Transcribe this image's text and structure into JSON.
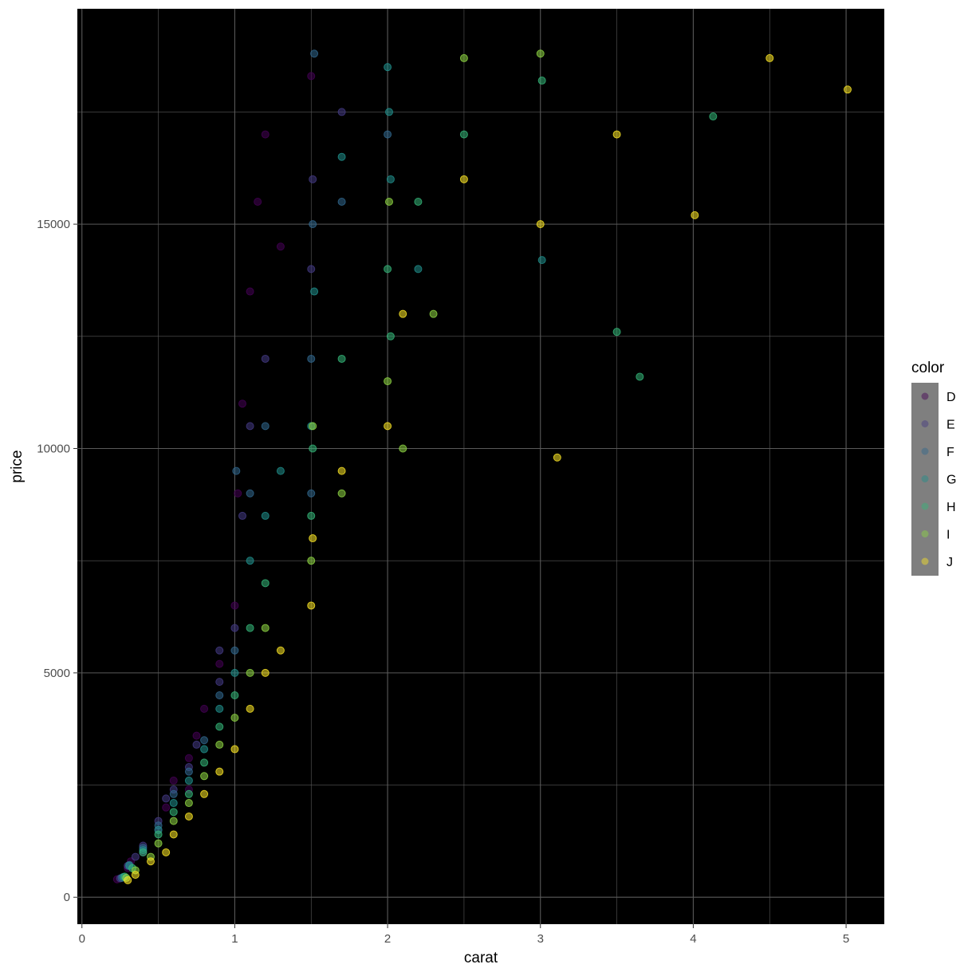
{
  "chart_data": {
    "type": "scatter",
    "title": "",
    "xlabel": "carat",
    "ylabel": "price",
    "xlim": [
      -0.03,
      5.25
    ],
    "ylim": [
      -600,
      19800
    ],
    "x_ticks": [
      0,
      1,
      2,
      3,
      4,
      5
    ],
    "x_tick_labels": [
      "0",
      "1",
      "2",
      "3",
      "4",
      "5"
    ],
    "y_ticks": [
      0,
      5000,
      10000,
      15000
    ],
    "y_tick_labels": [
      "0",
      "5000",
      "10000",
      "15000"
    ],
    "grid": true,
    "background": "#000000",
    "grid_color": "#5a5a5a",
    "legend": {
      "title": "color",
      "position": "right",
      "key_background": "#7f7f7f",
      "entries": [
        {
          "label": "D",
          "color": "#440154"
        },
        {
          "label": "E",
          "color": "#443a83"
        },
        {
          "label": "F",
          "color": "#31688e"
        },
        {
          "label": "G",
          "color": "#21908c"
        },
        {
          "label": "H",
          "color": "#35b779"
        },
        {
          "label": "I",
          "color": "#8fd744"
        },
        {
          "label": "J",
          "color": "#fde725"
        }
      ]
    },
    "series": [
      {
        "label": "D",
        "color": "#440154",
        "points": [
          [
            0.23,
            400
          ],
          [
            0.3,
            650
          ],
          [
            0.32,
            800
          ],
          [
            0.4,
            1000
          ],
          [
            0.5,
            1500
          ],
          [
            0.55,
            2000
          ],
          [
            0.6,
            2600
          ],
          [
            0.7,
            3100
          ],
          [
            0.75,
            3600
          ],
          [
            0.8,
            4200
          ],
          [
            0.9,
            5200
          ],
          [
            1.0,
            6500
          ],
          [
            1.02,
            9000
          ],
          [
            1.05,
            11000
          ],
          [
            1.1,
            13500
          ],
          [
            1.15,
            15500
          ],
          [
            1.2,
            17000
          ],
          [
            1.3,
            14500
          ],
          [
            1.5,
            18300
          ],
          [
            0.7,
            2400
          ]
        ]
      },
      {
        "label": "E",
        "color": "#443a83",
        "points": [
          [
            0.25,
            420
          ],
          [
            0.3,
            700
          ],
          [
            0.35,
            900
          ],
          [
            0.4,
            1150
          ],
          [
            0.5,
            1700
          ],
          [
            0.55,
            2200
          ],
          [
            0.6,
            2400
          ],
          [
            0.7,
            2900
          ],
          [
            0.75,
            3400
          ],
          [
            0.9,
            4800
          ],
          [
            1.0,
            6000
          ],
          [
            1.05,
            8500
          ],
          [
            1.1,
            10500
          ],
          [
            1.2,
            12000
          ],
          [
            1.5,
            14000
          ],
          [
            1.51,
            16000
          ],
          [
            1.7,
            17500
          ],
          [
            0.9,
            5500
          ]
        ]
      },
      {
        "label": "F",
        "color": "#31688e",
        "points": [
          [
            0.26,
            430
          ],
          [
            0.31,
            720
          ],
          [
            0.4,
            1100
          ],
          [
            0.5,
            1600
          ],
          [
            0.6,
            2300
          ],
          [
            0.7,
            2800
          ],
          [
            0.8,
            3500
          ],
          [
            0.9,
            4500
          ],
          [
            1.0,
            5500
          ],
          [
            1.01,
            9500
          ],
          [
            1.1,
            9000
          ],
          [
            1.2,
            10500
          ],
          [
            1.5,
            12000
          ],
          [
            1.51,
            15000
          ],
          [
            1.52,
            18800
          ],
          [
            1.7,
            15500
          ],
          [
            2.0,
            17000
          ],
          [
            1.5,
            9000
          ]
        ]
      },
      {
        "label": "G",
        "color": "#21908c",
        "points": [
          [
            0.27,
            450
          ],
          [
            0.31,
            700
          ],
          [
            0.4,
            1050
          ],
          [
            0.5,
            1500
          ],
          [
            0.6,
            2100
          ],
          [
            0.7,
            2600
          ],
          [
            0.8,
            3300
          ],
          [
            0.9,
            4200
          ],
          [
            1.0,
            5000
          ],
          [
            1.1,
            7500
          ],
          [
            1.2,
            8500
          ],
          [
            1.3,
            9500
          ],
          [
            1.5,
            10500
          ],
          [
            1.52,
            13500
          ],
          [
            1.7,
            16500
          ],
          [
            2.0,
            18500
          ],
          [
            2.01,
            17500
          ],
          [
            2.02,
            16000
          ],
          [
            2.2,
            14000
          ],
          [
            3.01,
            14200
          ]
        ]
      },
      {
        "label": "H",
        "color": "#35b779",
        "points": [
          [
            0.28,
            460
          ],
          [
            0.33,
            650
          ],
          [
            0.4,
            1000
          ],
          [
            0.5,
            1400
          ],
          [
            0.6,
            1900
          ],
          [
            0.7,
            2300
          ],
          [
            0.8,
            3000
          ],
          [
            0.9,
            3800
          ],
          [
            1.0,
            4500
          ],
          [
            1.1,
            6000
          ],
          [
            1.2,
            7000
          ],
          [
            1.5,
            8500
          ],
          [
            1.51,
            10000
          ],
          [
            1.7,
            12000
          ],
          [
            2.0,
            14000
          ],
          [
            2.02,
            12500
          ],
          [
            2.2,
            15500
          ],
          [
            2.5,
            17000
          ],
          [
            3.01,
            18200
          ],
          [
            4.13,
            17400
          ],
          [
            3.5,
            12600
          ],
          [
            3.65,
            11600
          ]
        ]
      },
      {
        "label": "I",
        "color": "#8fd744",
        "points": [
          [
            0.29,
            430
          ],
          [
            0.35,
            600
          ],
          [
            0.45,
            900
          ],
          [
            0.5,
            1200
          ],
          [
            0.6,
            1700
          ],
          [
            0.7,
            2100
          ],
          [
            0.8,
            2700
          ],
          [
            0.9,
            3400
          ],
          [
            1.0,
            4000
          ],
          [
            1.1,
            5000
          ],
          [
            1.2,
            6000
          ],
          [
            1.5,
            7500
          ],
          [
            1.51,
            10500
          ],
          [
            1.7,
            9000
          ],
          [
            2.0,
            11500
          ],
          [
            2.01,
            15500
          ],
          [
            2.3,
            13000
          ],
          [
            2.5,
            18700
          ],
          [
            3.0,
            18800
          ],
          [
            2.1,
            10000
          ]
        ]
      },
      {
        "label": "J",
        "color": "#fde725",
        "points": [
          [
            0.3,
            380
          ],
          [
            0.35,
            500
          ],
          [
            0.45,
            800
          ],
          [
            0.55,
            1000
          ],
          [
            0.6,
            1400
          ],
          [
            0.7,
            1800
          ],
          [
            0.8,
            2300
          ],
          [
            0.9,
            2800
          ],
          [
            1.0,
            3300
          ],
          [
            1.1,
            4200
          ],
          [
            1.2,
            5000
          ],
          [
            1.3,
            5500
          ],
          [
            1.5,
            6500
          ],
          [
            1.51,
            8000
          ],
          [
            1.7,
            9500
          ],
          [
            2.0,
            10500
          ],
          [
            2.1,
            13000
          ],
          [
            2.5,
            16000
          ],
          [
            3.0,
            15000
          ],
          [
            3.5,
            17000
          ],
          [
            4.01,
            15200
          ],
          [
            4.5,
            18700
          ],
          [
            5.01,
            18000
          ],
          [
            3.11,
            9800
          ]
        ]
      }
    ]
  }
}
